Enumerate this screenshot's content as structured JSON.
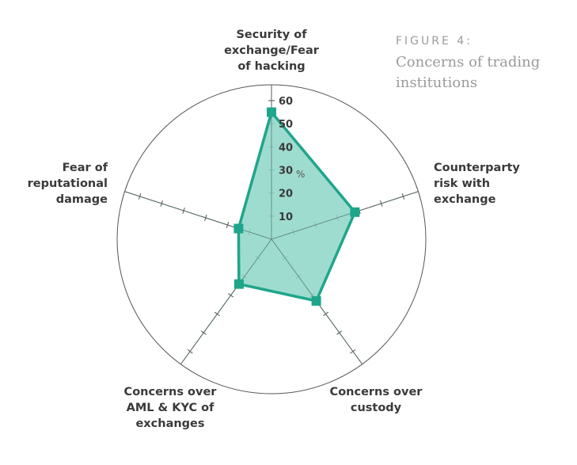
{
  "figure": {
    "label": "FIGURE 4:",
    "title": "Concerns of trading institutions"
  },
  "chart_data": {
    "type": "radar",
    "axes": [
      "Security of exchange/Fear of hacking",
      "Counterparty risk with exchange",
      "Concerns over custody",
      "Concerns over AML & KYC of exchanges",
      "Fear of reputational damage"
    ],
    "values": [
      55,
      38,
      33,
      24,
      15
    ],
    "r_ticks": [
      10,
      20,
      30,
      40,
      50,
      60
    ],
    "r_unit": "%",
    "r_range": [
      0,
      60
    ],
    "colors": {
      "fill": "#8ed6c8",
      "stroke": "#1fa58a",
      "grid": "#555555"
    }
  }
}
